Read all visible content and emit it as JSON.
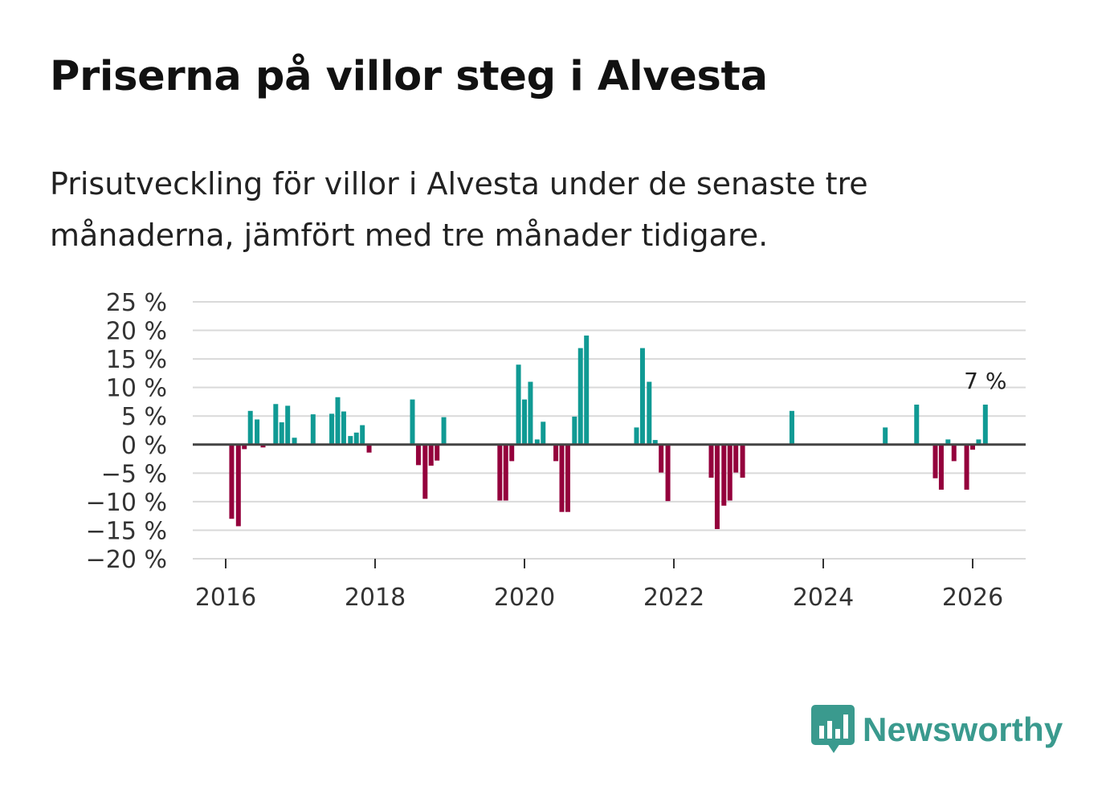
{
  "title": "Priserna på villor steg i Alvesta",
  "subtitle": "Prisutveckling för villor i Alvesta under de senaste tre månaderna, jämfört med tre månader tidigare.",
  "brand": {
    "name": "Newsworthy",
    "color": "#3a9a8e",
    "icon": "bar-chart-speech-bubble-icon"
  },
  "colors": {
    "positive": "#109a94",
    "negative": "#94003c",
    "grid": "#d9d9d9",
    "zero_line": "#444444"
  },
  "chart_data": {
    "type": "bar",
    "title": "Priserna på villor steg i Alvesta",
    "xlabel": "",
    "ylabel": "",
    "ylim": [
      -20,
      25
    ],
    "yticks": [
      25,
      20,
      15,
      10,
      5,
      0,
      -5,
      -10,
      -15,
      -20
    ],
    "ytick_labels": [
      "25 %",
      "20 %",
      "15 %",
      "10 %",
      "5 %",
      "0 %",
      "−5 %",
      "−10 %",
      "−15 %",
      "−20 %"
    ],
    "xlim": [
      2015.6,
      2026.7
    ],
    "xticks": [
      2016,
      2018,
      2020,
      2022,
      2024,
      2026
    ],
    "xtick_labels": [
      "2016",
      "2018",
      "2020",
      "2022",
      "2024",
      "2026"
    ],
    "grid": true,
    "annotation": {
      "text": "7 %",
      "x": 2026.17
    },
    "x": [
      2016.08,
      2016.17,
      2016.25,
      2016.33,
      2016.42,
      2016.5,
      2016.67,
      2016.75,
      2016.83,
      2016.92,
      2017.17,
      2017.42,
      2017.5,
      2017.58,
      2017.67,
      2017.75,
      2017.83,
      2017.92,
      2018.5,
      2018.58,
      2018.67,
      2018.75,
      2018.83,
      2018.92,
      2019.67,
      2019.75,
      2019.83,
      2019.92,
      2020.0,
      2020.08,
      2020.17,
      2020.25,
      2020.42,
      2020.5,
      2020.58,
      2020.67,
      2020.75,
      2020.83,
      2021.5,
      2021.58,
      2021.67,
      2021.75,
      2021.83,
      2021.92,
      2022.5,
      2022.58,
      2022.67,
      2022.75,
      2022.83,
      2022.92,
      2023.58,
      2024.83,
      2025.25,
      2025.5,
      2025.58,
      2025.67,
      2025.75,
      2025.92,
      2026.0,
      2026.08,
      2026.17
    ],
    "values": [
      -13,
      -14.3,
      -0.8,
      5.9,
      4.4,
      -0.5,
      7.1,
      3.9,
      6.8,
      1.2,
      5.3,
      5.4,
      8.3,
      5.8,
      1.5,
      2.1,
      3.4,
      -1.4,
      7.9,
      -3.6,
      -9.5,
      -3.7,
      -2.8,
      4.8,
      -9.8,
      -9.8,
      -2.9,
      14,
      7.9,
      11,
      0.9,
      4,
      -2.9,
      -11.8,
      -11.8,
      4.9,
      16.9,
      19.1,
      3,
      16.9,
      11,
      0.8,
      -4.9,
      -9.9,
      -5.8,
      -14.8,
      -10.7,
      -9.8,
      -4.9,
      -5.8,
      5.9,
      3,
      7,
      -5.9,
      -7.9,
      0.9,
      -2.9,
      -7.9,
      -0.9,
      0.9,
      7
    ]
  }
}
